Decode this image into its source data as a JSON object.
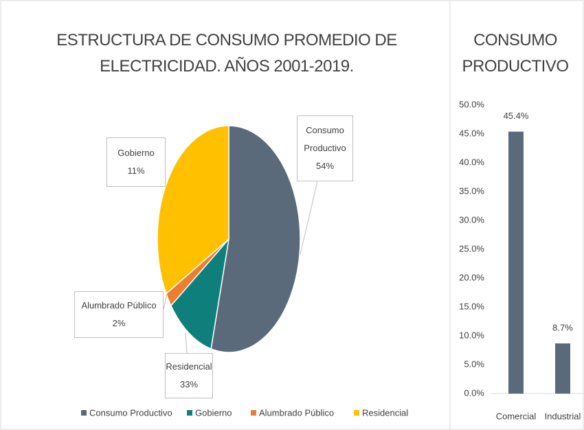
{
  "chart_data": [
    {
      "type": "pie",
      "title": "ESTRUCTURA DE CONSUMO PROMEDIO DE ELECTRICIDAD. AÑOS 2001-2019.",
      "categories": [
        "Consumo Productivo",
        "Gobierno",
        "Alumbrado Público",
        "Residencial"
      ],
      "values": [
        54,
        11,
        2,
        33
      ],
      "value_labels": [
        "54%",
        "11%",
        "2%",
        "33%"
      ],
      "colors": [
        "#5b6a7b",
        "#0e7f7b",
        "#ed7d31",
        "#ffc000"
      ],
      "legend": "bottom"
    },
    {
      "type": "bar",
      "title": "CONSUMO PRODUCTIVO",
      "categories": [
        "Comercial",
        "Industrial"
      ],
      "values": [
        45.4,
        8.7
      ],
      "value_labels": [
        "45.4%",
        "8.7%"
      ],
      "color": "#5b6a7b",
      "ylim": [
        0,
        50
      ],
      "yticks": [
        {
          "value": 0,
          "label": "0.0%"
        },
        {
          "value": 5,
          "label": "5.0%"
        },
        {
          "value": 10,
          "label": "10.0%"
        },
        {
          "value": 15,
          "label": "15.0%"
        },
        {
          "value": 20,
          "label": "20.0%"
        },
        {
          "value": 25,
          "label": "25.0%"
        },
        {
          "value": 30,
          "label": "30.0%"
        },
        {
          "value": 35,
          "label": "35.0%"
        },
        {
          "value": 40,
          "label": "40.0%"
        },
        {
          "value": 45,
          "label": "45.0%"
        },
        {
          "value": 50,
          "label": "50.0%"
        }
      ]
    }
  ]
}
